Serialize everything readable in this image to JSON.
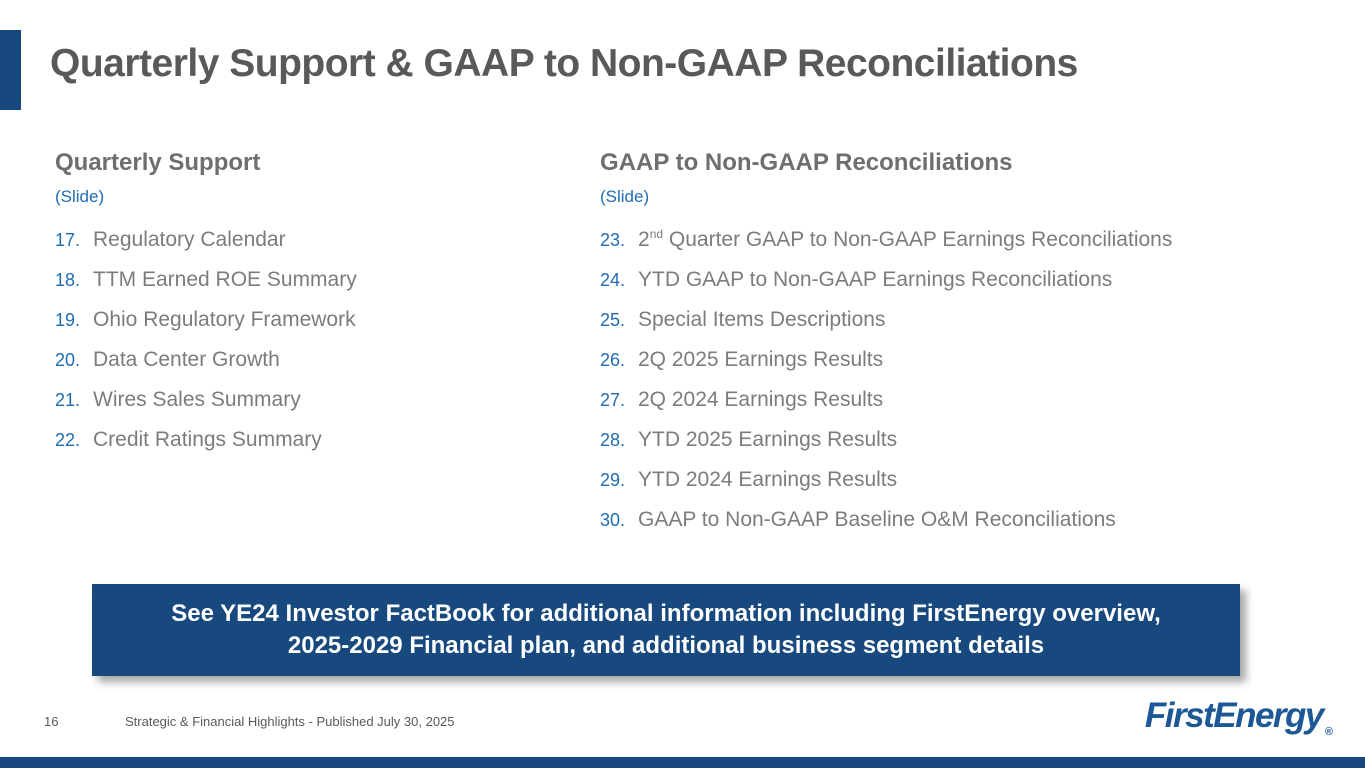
{
  "slide_title": "Quarterly Support & GAAP to Non-GAAP Reconciliations",
  "columns": [
    {
      "heading": "Quarterly Support",
      "slide_label": "(Slide)",
      "items": [
        {
          "num": "17.",
          "text": "Regulatory Calendar"
        },
        {
          "num": "18.",
          "text": "TTM Earned ROE Summary"
        },
        {
          "num": "19.",
          "text": "Ohio Regulatory Framework"
        },
        {
          "num": "20.",
          "text": "Data Center Growth"
        },
        {
          "num": "21.",
          "text": "Wires Sales Summary"
        },
        {
          "num": "22.",
          "text": "Credit Ratings Summary"
        }
      ]
    },
    {
      "heading": "GAAP to Non-GAAP Reconciliations",
      "slide_label": "(Slide)",
      "items": [
        {
          "num": "23.",
          "pre": "2",
          "sup": "nd",
          "text": " Quarter GAAP to Non-GAAP Earnings Reconciliations"
        },
        {
          "num": "24.",
          "text": "YTD GAAP to Non-GAAP Earnings Reconciliations"
        },
        {
          "num": "25.",
          "text": "Special Items Descriptions"
        },
        {
          "num": "26.",
          "text": "2Q 2025 Earnings Results"
        },
        {
          "num": "27.",
          "text": "2Q 2024 Earnings Results"
        },
        {
          "num": "28.",
          "text": "YTD 2025 Earnings Results"
        },
        {
          "num": "29.",
          "text": "YTD 2024 Earnings Results"
        },
        {
          "num": "30.",
          "text": "GAAP to Non-GAAP Baseline O&M Reconciliations"
        }
      ]
    }
  ],
  "banner": {
    "line1": "See YE24 Investor FactBook for additional information including FirstEnergy overview,",
    "line2": "2025-2029 Financial plan, and additional business segment details"
  },
  "footer": {
    "page_number": "16",
    "caption": "Strategic & Financial Highlights - Published July 30, 2025"
  },
  "logo": {
    "brand": "FirstEnergy",
    "registered_mark": "®"
  },
  "colors": {
    "accent_blue": "#17497F",
    "number_blue": "#1F6CB4",
    "title_gray": "#595959",
    "heading_gray": "#6E6E6E",
    "item_gray": "#7C7C7C",
    "banner_bg": "#17497F",
    "banner_text": "#FFFFFF"
  }
}
